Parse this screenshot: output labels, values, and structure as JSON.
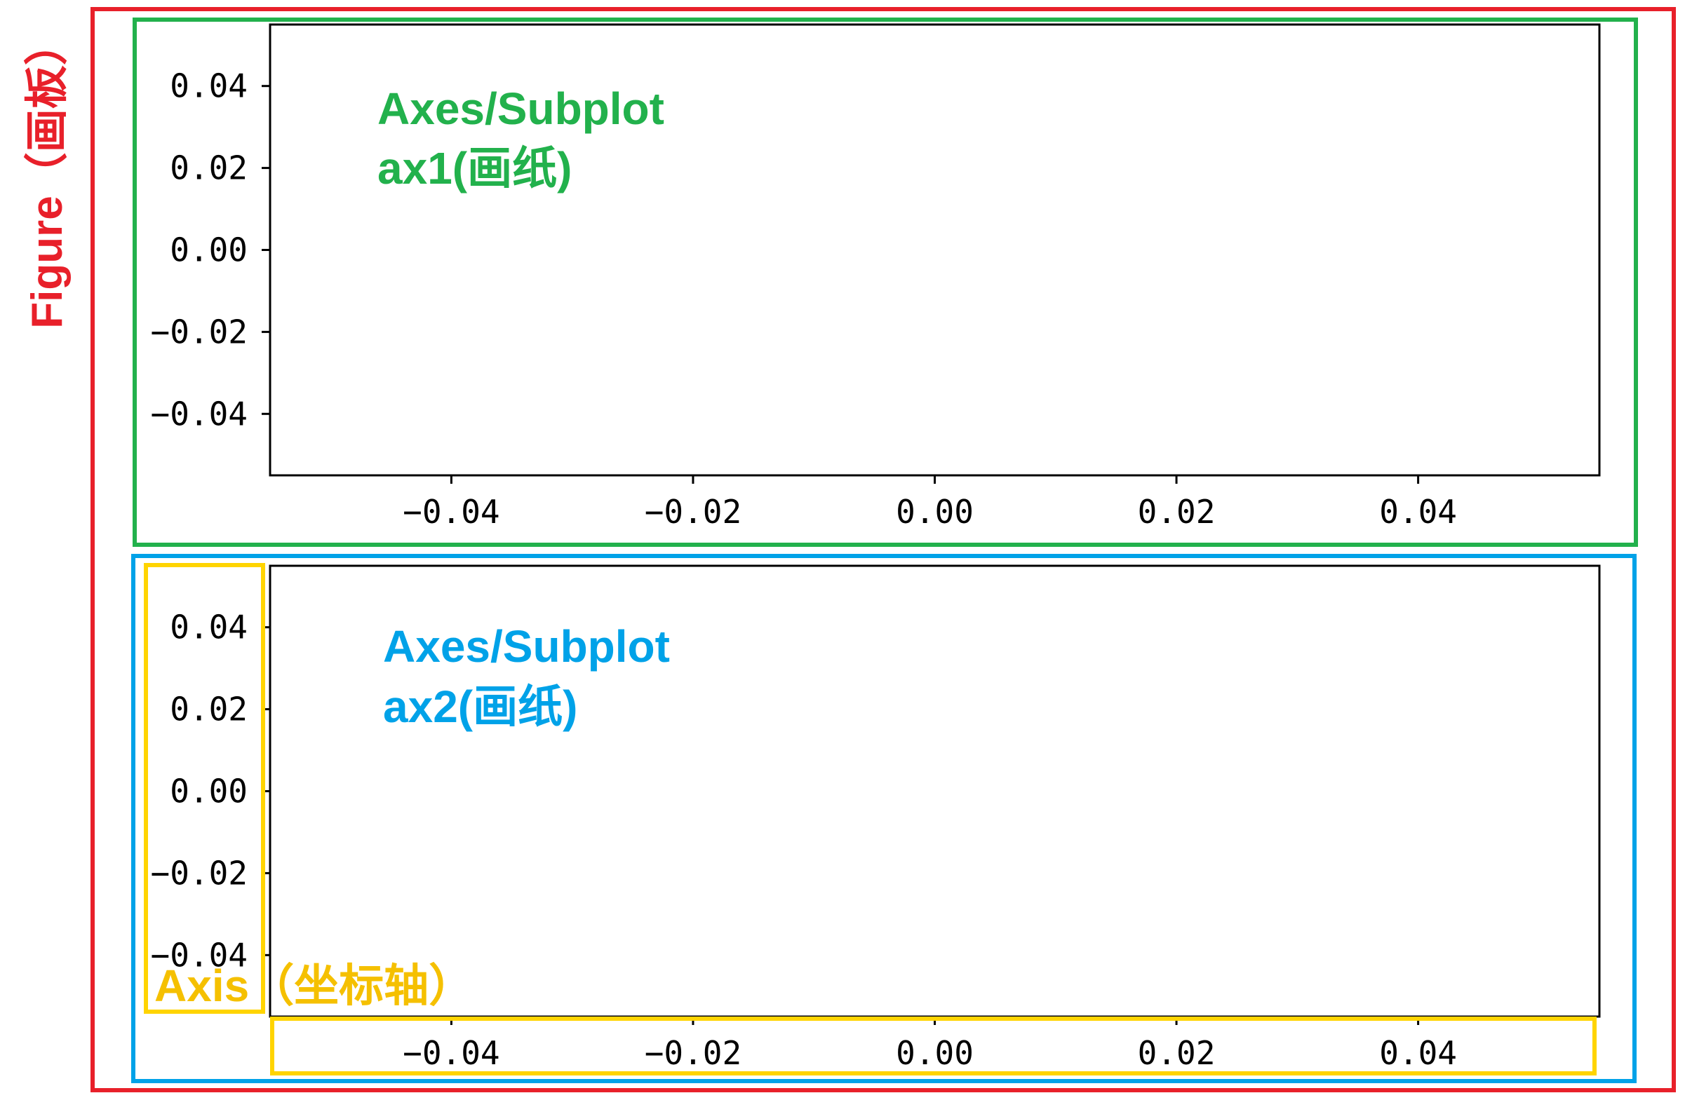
{
  "figure": {
    "label": "Figure（画板）",
    "border_color": "#e8202a"
  },
  "annotation_colors": {
    "ax1": "#22b14c",
    "ax2": "#00a2e8",
    "axis": "#ffd400",
    "axis_text": "#f5c000"
  },
  "chart_data": [
    {
      "type": "line",
      "name": "ax1",
      "series": [],
      "xlim": [
        -0.055,
        0.055
      ],
      "ylim": [
        -0.055,
        0.055
      ],
      "xticks": [
        -0.04,
        -0.02,
        0.0,
        0.02,
        0.04
      ],
      "yticks": [
        -0.04,
        -0.02,
        0.0,
        0.02,
        0.04
      ],
      "xtick_labels": [
        "−0.04",
        "−0.02",
        "0.00",
        "0.02",
        "0.04"
      ],
      "ytick_labels": [
        "−0.04",
        "−0.02",
        "0.00",
        "0.02",
        "0.04"
      ],
      "annotation": [
        "Axes/Subplot",
        "ax1(画纸)"
      ],
      "grid": false
    },
    {
      "type": "line",
      "name": "ax2",
      "series": [],
      "xlim": [
        -0.055,
        0.055
      ],
      "ylim": [
        -0.055,
        0.055
      ],
      "xticks": [
        -0.04,
        -0.02,
        0.0,
        0.02,
        0.04
      ],
      "yticks": [
        -0.04,
        -0.02,
        0.0,
        0.02,
        0.04
      ],
      "xtick_labels": [
        "−0.04",
        "−0.02",
        "0.00",
        "0.02",
        "0.04"
      ],
      "ytick_labels": [
        "−0.04",
        "−0.02",
        "0.00",
        "0.02",
        "0.04"
      ],
      "annotation": [
        "Axes/Subplot",
        "ax2(画纸)"
      ],
      "axis_annotation": "Axis（坐标轴）",
      "grid": false
    }
  ]
}
